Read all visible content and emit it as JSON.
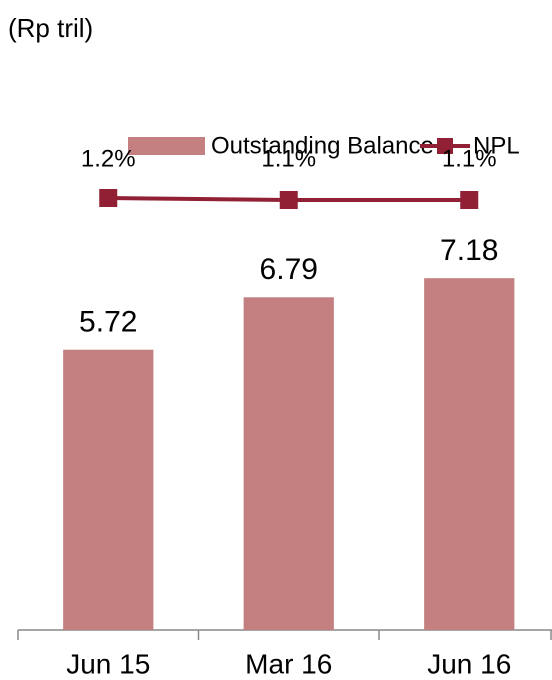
{
  "chart_data": {
    "type": "bar-line",
    "ylabel": "(Rp tril)",
    "categories": [
      "Jun 15",
      "Mar 16",
      "Jun 16"
    ],
    "series": [
      {
        "name": "Outstanding Balance",
        "type": "bar",
        "color": "#c48080",
        "values": [
          5.72,
          6.79,
          7.18
        ]
      },
      {
        "name": "NPL",
        "type": "line",
        "axis": "y2",
        "color": "#922035",
        "values": [
          1.2,
          1.1,
          1.1
        ],
        "value_labels": [
          "1.2%",
          "1.1%",
          "1.1%"
        ]
      }
    ],
    "ylim": [
      0,
      12
    ],
    "y2lim": [
      -20.4,
      9
    ],
    "grid": false,
    "legend": "top"
  }
}
